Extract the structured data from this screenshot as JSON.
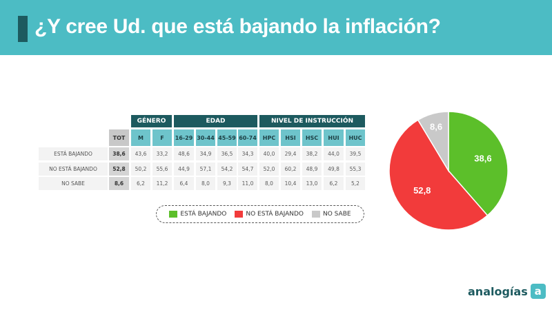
{
  "header": {
    "title": "¿Y cree Ud. que está bajando la inflación?"
  },
  "table": {
    "groups": [
      "GÉNERO",
      "EDAD",
      "NIVEL DE INSTRUCCIÓN"
    ],
    "columns": [
      "TOT",
      "M",
      "F",
      "16-29",
      "30-44",
      "45-59",
      "60-74",
      "HPC",
      "HSI",
      "HSC",
      "HUI",
      "HUC"
    ],
    "rows": [
      {
        "label": "ESTÁ BAJANDO",
        "values": [
          "38,6",
          "43,6",
          "33,2",
          "48,6",
          "34,9",
          "36,5",
          "34,3",
          "40,0",
          "29,4",
          "38,2",
          "44,0",
          "39,5"
        ]
      },
      {
        "label": "NO ESTÁ BAJANDO",
        "values": [
          "52,8",
          "50,2",
          "55,6",
          "44,9",
          "57,1",
          "54,2",
          "54,7",
          "52,0",
          "60,2",
          "48,9",
          "49,8",
          "55,3"
        ]
      },
      {
        "label": "NO SABE",
        "values": [
          "8,6",
          "6,2",
          "11,2",
          "6,4",
          "8,0",
          "9,3",
          "11,0",
          "8,0",
          "10,4",
          "13,0",
          "6,2",
          "5,2"
        ]
      }
    ]
  },
  "legend": [
    {
      "label": "ESTÁ BAJANDO",
      "color": "#5cbf2a"
    },
    {
      "label": "NO ESTÁ BAJANDO",
      "color": "#f23b3b"
    },
    {
      "label": "NO SABE",
      "color": "#c9c9c9"
    }
  ],
  "chart_data": {
    "type": "pie",
    "title": "¿Y cree Ud. que está bajando la inflación?",
    "categories": [
      "ESTÁ BAJANDO",
      "NO ESTÁ BAJANDO",
      "NO SABE"
    ],
    "values": [
      38.6,
      52.8,
      8.6
    ],
    "labels": [
      "38,6",
      "52,8",
      "8,6"
    ],
    "colors": [
      "#5cbf2a",
      "#f23b3b",
      "#c9c9c9"
    ]
  },
  "logo": {
    "text": "analogías",
    "badge": "a"
  }
}
